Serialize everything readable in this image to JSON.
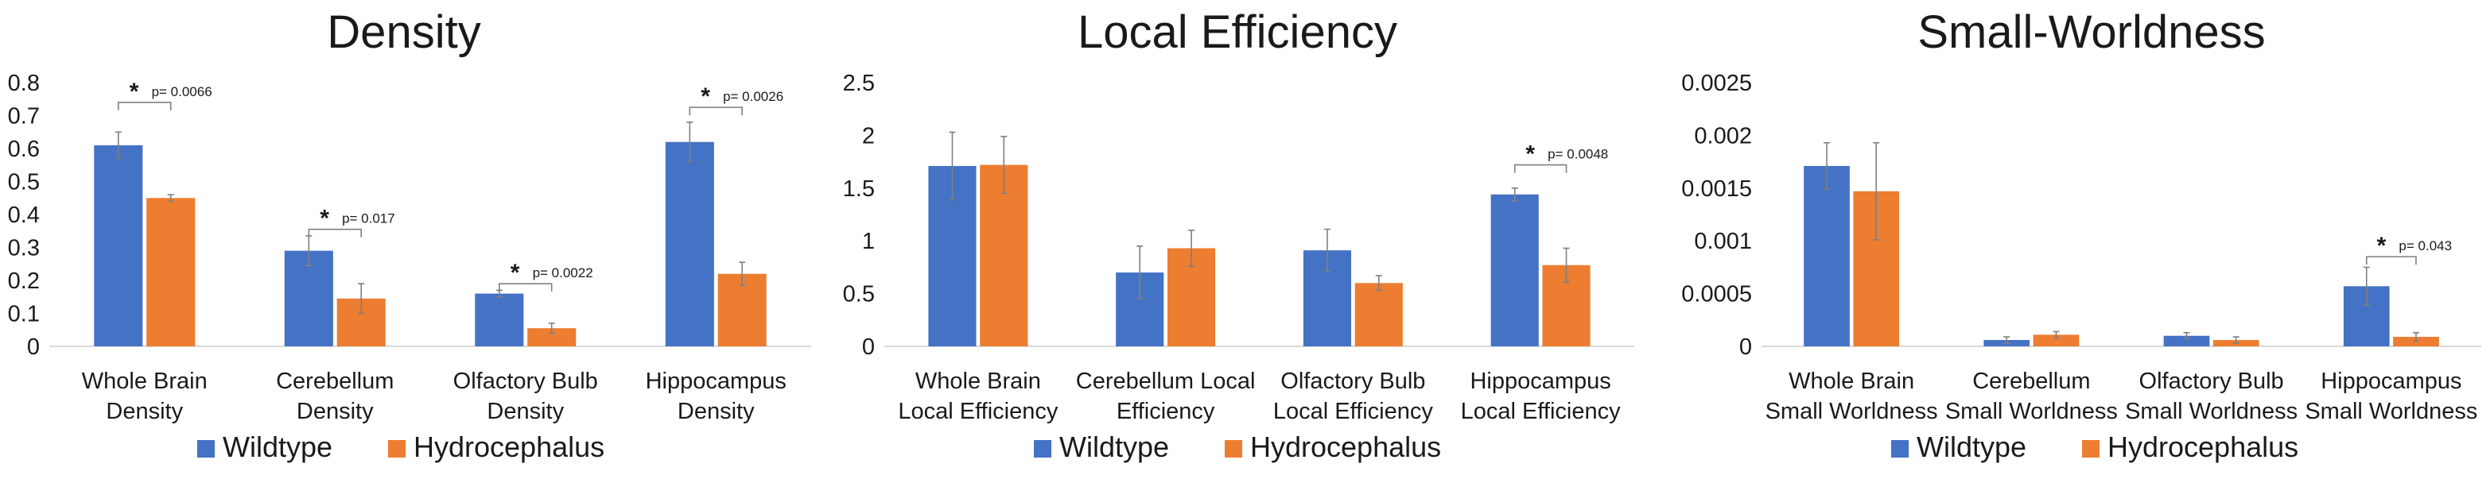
{
  "colors": {
    "wildtype": "#4472C4",
    "hydrocephalus": "#ED7D31",
    "axis": "#d9d9d9",
    "error": "#7f7f7f",
    "text": "#1a1a1a"
  },
  "chart_data": [
    {
      "type": "bar",
      "title": "Density",
      "categories": [
        [
          "Whole Brain",
          "Density"
        ],
        [
          "Cerebellum",
          "Density"
        ],
        [
          "Olfactory Bulb",
          "Density"
        ],
        [
          "Hippocampus",
          "Density"
        ]
      ],
      "ylim": [
        0,
        0.8
      ],
      "yticks": [
        0,
        0.1,
        0.2,
        0.3,
        0.4,
        0.5,
        0.6,
        0.7,
        0.8
      ],
      "ytick_labels": [
        "0",
        "0.1",
        "0.2",
        "0.3",
        "0.4",
        "0.5",
        "0.6",
        "0.7",
        "0.8"
      ],
      "series": [
        {
          "name": "Wildtype",
          "values": [
            0.61,
            0.29,
            0.16,
            0.62
          ],
          "errors": [
            0.04,
            0.045,
            0.01,
            0.06
          ]
        },
        {
          "name": "Hydrocephalus",
          "values": [
            0.45,
            0.145,
            0.055,
            0.22
          ],
          "errors": [
            0.01,
            0.045,
            0.015,
            0.035
          ]
        }
      ],
      "annotations": [
        {
          "category_index": 0,
          "star": "*",
          "p_text": "p= 0.0066",
          "bracket_y": 0.74
        },
        {
          "category_index": 1,
          "star": "*",
          "p_text": "p= 0.017",
          "bracket_y": 0.355
        },
        {
          "category_index": 2,
          "star": "*",
          "p_text": "p= 0.0022",
          "bracket_y": 0.19
        },
        {
          "category_index": 3,
          "star": "*",
          "p_text": "p= 0.0026",
          "bracket_y": 0.725
        }
      ],
      "legend": {
        "position": "bottom",
        "labels": [
          "Wildtype",
          "Hydrocephalus"
        ]
      }
    },
    {
      "type": "bar",
      "title": "Local Efficiency",
      "categories": [
        [
          "Whole Brain",
          "Local Efficiency"
        ],
        [
          "Cerebellum Local",
          "Efficiency"
        ],
        [
          "Olfactory Bulb",
          "Local Efficiency"
        ],
        [
          "Hippocampus",
          "Local Efficiency"
        ]
      ],
      "ylim": [
        0,
        2.5
      ],
      "yticks": [
        0,
        0.5,
        1,
        1.5,
        2,
        2.5
      ],
      "ytick_labels": [
        "0",
        "0.5",
        "1",
        "1.5",
        "2",
        "2.5"
      ],
      "series": [
        {
          "name": "Wildtype",
          "values": [
            1.71,
            0.7,
            0.91,
            1.44
          ],
          "errors": [
            0.32,
            0.25,
            0.2,
            0.06
          ]
        },
        {
          "name": "Hydrocephalus",
          "values": [
            1.72,
            0.93,
            0.6,
            0.77
          ],
          "errors": [
            0.27,
            0.17,
            0.07,
            0.16
          ]
        }
      ],
      "annotations": [
        {
          "category_index": 3,
          "star": "*",
          "p_text": "p= 0.0048",
          "bracket_y": 1.72
        }
      ],
      "legend": {
        "position": "bottom",
        "labels": [
          "Wildtype",
          "Hydrocephalus"
        ]
      }
    },
    {
      "type": "bar",
      "title": "Small-Worldness",
      "categories": [
        [
          "Whole Brain",
          "Small Worldness"
        ],
        [
          "Cerebellum",
          "Small Worldness"
        ],
        [
          "Olfactory Bulb",
          "Small Worldness"
        ],
        [
          "Hippocampus",
          "Small Worldness"
        ]
      ],
      "ylim": [
        0,
        0.0025
      ],
      "yticks": [
        0,
        0.0005,
        0.001,
        0.0015,
        0.002,
        0.0025
      ],
      "ytick_labels": [
        "0",
        "0.0005",
        "0.001",
        "0.0015",
        "0.002",
        "0.0025"
      ],
      "series": [
        {
          "name": "Wildtype",
          "values": [
            0.00171,
            6e-05,
            0.0001,
            0.00057
          ],
          "errors": [
            0.00022,
            3e-05,
            3e-05,
            0.00018
          ]
        },
        {
          "name": "Hydrocephalus",
          "values": [
            0.00147,
            0.00011,
            6e-05,
            9e-05
          ],
          "errors": [
            0.00046,
            3e-05,
            3e-05,
            4e-05
          ]
        }
      ],
      "annotations": [
        {
          "category_index": 3,
          "star": "*",
          "p_text": "p= 0.043",
          "bracket_y": 0.00085
        }
      ],
      "legend": {
        "position": "bottom",
        "labels": [
          "Wildtype",
          "Hydrocephalus"
        ]
      }
    }
  ]
}
